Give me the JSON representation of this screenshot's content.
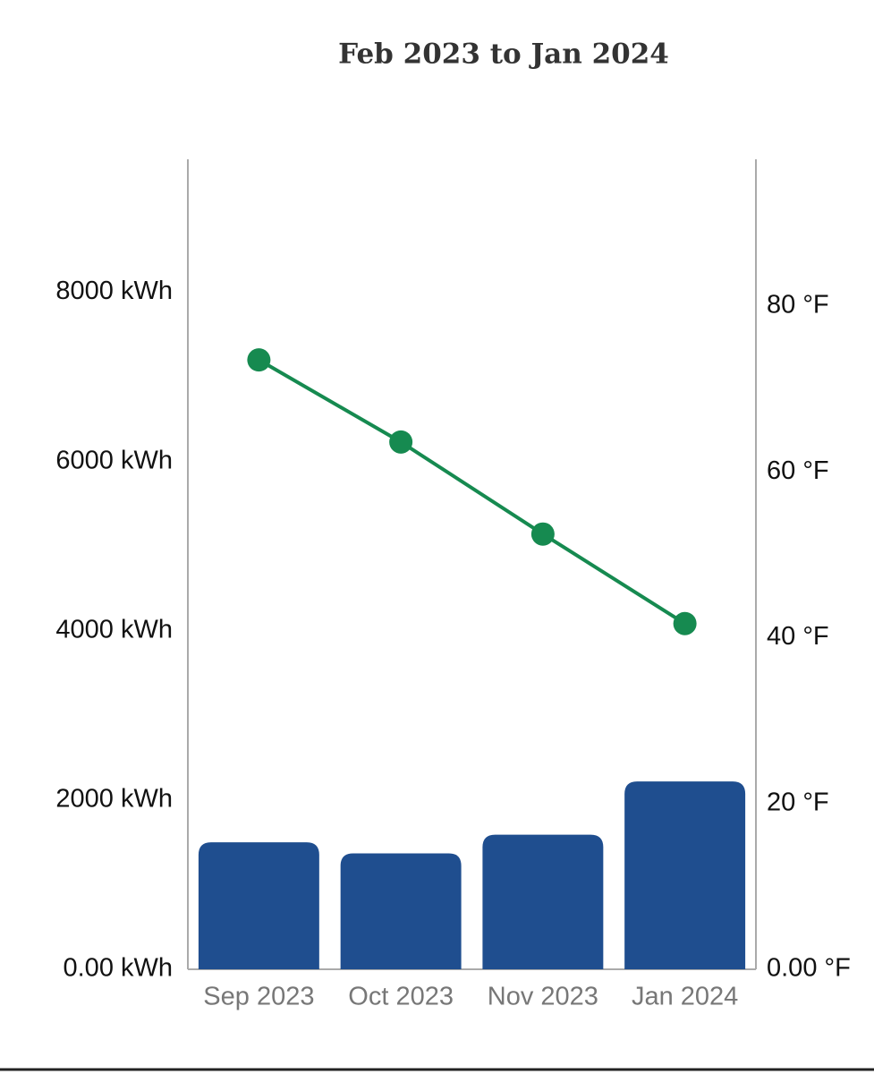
{
  "chart_data": {
    "type": "bar-line",
    "title": "Feb 2023 to Jan 2024",
    "categories": [
      "Sep 2023",
      "Oct 2023",
      "Nov 2023",
      "Jan 2024"
    ],
    "series": [
      {
        "type": "bar",
        "color": "#1f4e8f",
        "values": [
          1500,
          1370,
          1590,
          2220
        ]
      },
      {
        "type": "line",
        "axis": "y2",
        "color": "#168a50",
        "values": [
          73.5,
          63.6,
          52.5,
          41.7
        ]
      }
    ],
    "ylim": [
      0,
      9570
    ],
    "yticks": [
      {
        "value": 0,
        "label": "0.00 kWh"
      },
      {
        "value": 2000,
        "label": "2000 kWh"
      },
      {
        "value": 4000,
        "label": "4000 kWh"
      },
      {
        "value": 6000,
        "label": "6000 kWh"
      },
      {
        "value": 8000,
        "label": "8000 kWh"
      }
    ],
    "y2lim": [
      0,
      97.7
    ],
    "y2ticks": [
      {
        "value": 0,
        "label": "0.00 °F"
      },
      {
        "value": 20,
        "label": "20 °F"
      },
      {
        "value": 40,
        "label": "40 °F"
      },
      {
        "value": 60,
        "label": "60 °F"
      },
      {
        "value": 80,
        "label": "80 °F"
      }
    ]
  }
}
